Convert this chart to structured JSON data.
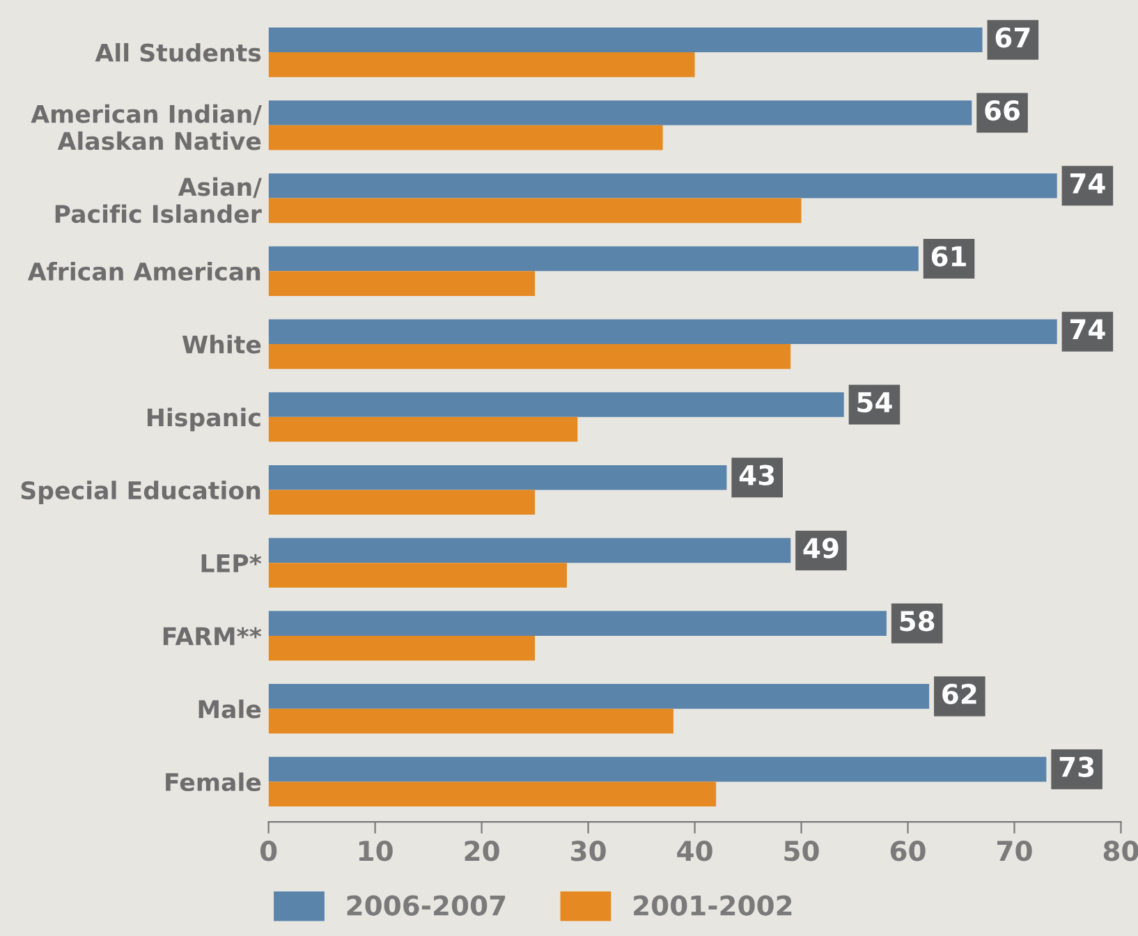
{
  "chart_data": {
    "type": "bar",
    "orientation": "horizontal",
    "categories": [
      "All Students",
      "American Indian/\nAlaskan Native",
      "Asian/\nPacific Islander",
      "African American",
      "White",
      "Hispanic",
      "Special Education",
      "LEP*",
      "FARM**",
      "Male",
      "Female"
    ],
    "series": [
      {
        "name": "2006-2007",
        "color": "#5b84ab",
        "values": [
          67,
          66,
          74,
          61,
          74,
          54,
          43,
          49,
          58,
          62,
          73
        ],
        "value_labels": [
          "67",
          "66",
          "74",
          "61",
          "74",
          "54",
          "43",
          "49",
          "58",
          "62",
          "73"
        ]
      },
      {
        "name": "2001-2002",
        "color": "#e58a22",
        "values": [
          40,
          37,
          50,
          25,
          49,
          29,
          25,
          28,
          25,
          38,
          42
        ]
      }
    ],
    "xlim": [
      0,
      80
    ],
    "xticks": [
      0,
      10,
      20,
      30,
      40,
      50,
      60,
      70,
      80
    ],
    "grid": false,
    "legend": "bottom"
  }
}
